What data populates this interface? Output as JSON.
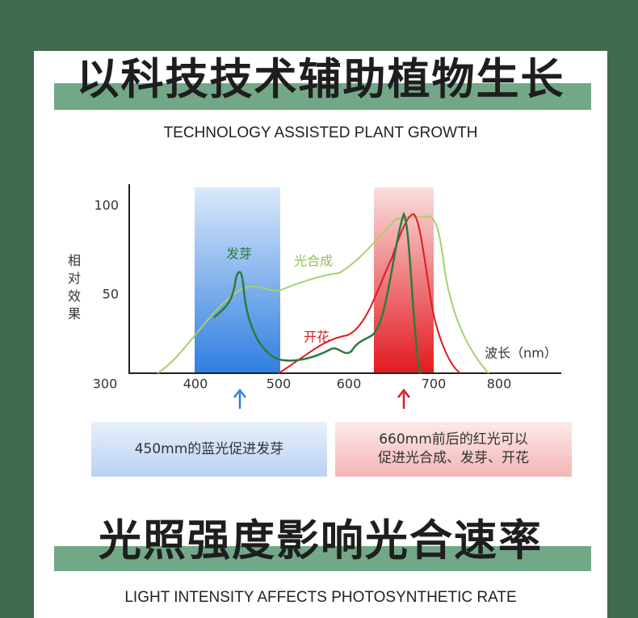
{
  "header": {
    "title": "以科技技术辅助植物生长",
    "subtitle": "TECHNOLOGY ASSISTED PLANT GROWTH"
  },
  "figure": {
    "y_label": "相对效果",
    "y_ticks": [
      "100",
      "50"
    ],
    "x_ticks": [
      "300",
      "400",
      "500",
      "600",
      "700",
      "800"
    ],
    "x_label": "波长（nm）",
    "curve_labels": [
      "发芽",
      "光合成",
      "开花"
    ]
  },
  "notes": {
    "blue": "450mm的蓝光促进发芽",
    "red": [
      "660mm前后的红光可以",
      "促进光合成、发芽、开花"
    ]
  },
  "section": {
    "title": "光照强度影响光合速率",
    "subtitle": "LIGHT INTENSITY AFFECTS PHOTOSYNTHETIC RATE"
  }
}
